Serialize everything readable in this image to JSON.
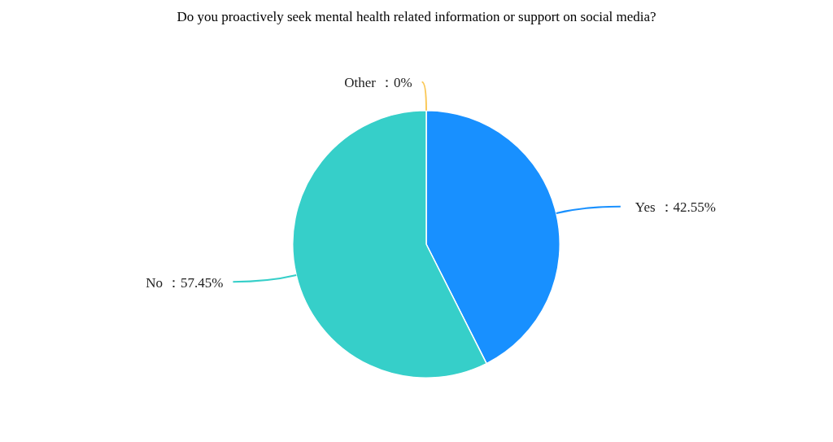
{
  "chart_data": {
    "type": "pie",
    "title": "Do you proactively seek mental health related information or support on social media?",
    "categories": [
      "Yes",
      "No",
      "Other"
    ],
    "values": [
      42.55,
      57.45,
      0
    ],
    "colors": [
      "#1890ff",
      "#36cfc9",
      "#fac858"
    ],
    "value_labels": [
      "：42.55%",
      "：57.45%",
      "：0%"
    ],
    "legend": false
  }
}
